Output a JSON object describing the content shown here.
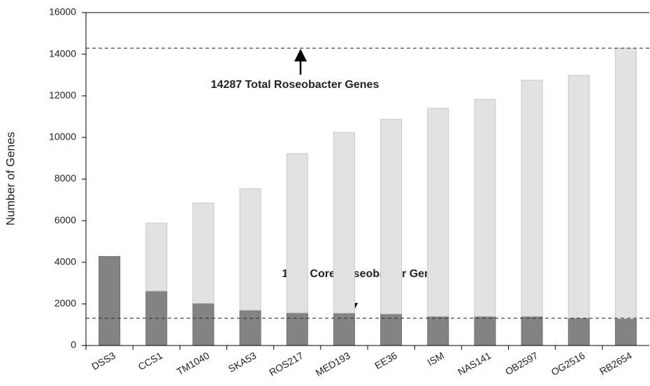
{
  "chart_data": {
    "type": "stacked_bar",
    "y_label": "Number of Genes",
    "categories": [
      "DSS3",
      "CCS1",
      "TM1040",
      "SKA53",
      "ROS217",
      "MED193",
      "EE36",
      "ISM",
      "NAS141",
      "OB2597",
      "OG2516",
      "RB2654"
    ],
    "series": [
      {
        "color": "#838383",
        "values": [
          4280,
          2620,
          2030,
          1700,
          1570,
          1560,
          1520,
          1400,
          1400,
          1400,
          1320,
          1290
        ]
      },
      {
        "color": "#e2e2e2",
        "values": [
          0,
          3260,
          4820,
          5830,
          7650,
          8680,
          9350,
          10000,
          10430,
          11350,
          11660,
          12997
        ]
      }
    ],
    "reference_lines": [
      14287,
      1310
    ],
    "annotations": [
      "14287 Total Roseobacter Genes",
      "1310 Core Roseobacter Genes"
    ],
    "ylim": [
      0,
      16000
    ],
    "yticks": [
      0,
      2000,
      4000,
      6000,
      8000,
      10000,
      12000,
      14000,
      16000
    ]
  }
}
